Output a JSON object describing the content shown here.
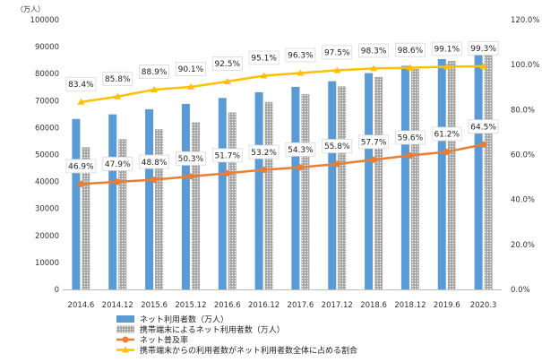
{
  "chart_data": {
    "type": "bar",
    "categories": [
      "2014.6",
      "2014.12",
      "2015.6",
      "2015.12",
      "2016.6",
      "2016.12",
      "2017.6",
      "2017.12",
      "2018.6",
      "2018.12",
      "2019.6",
      "2020.3"
    ],
    "y_unit_label": "（万人）",
    "ylim": [
      0,
      100000
    ],
    "y_ticks": [
      "0",
      "10000",
      "20000",
      "30000",
      "40000",
      "50000",
      "60000",
      "70000",
      "80000",
      "90000",
      "100000"
    ],
    "y2lim": [
      0,
      120
    ],
    "y2_ticks": [
      "0.0%",
      "20.0%",
      "40.0%",
      "60.0%",
      "80.0%",
      "100.0%",
      "120.0%"
    ],
    "series": [
      {
        "name": "ネット利用者数（万人）",
        "kind": "bar",
        "axis": "left",
        "color": "#5b9bd5",
        "values": [
          63200,
          64900,
          66800,
          68800,
          71000,
          73100,
          75100,
          77200,
          80200,
          82900,
          85400,
          90400
        ]
      },
      {
        "name": "携帯端末によるネット利用者数（万人）",
        "kind": "bar",
        "axis": "left",
        "color": "#a5a5a5",
        "values": [
          52700,
          55700,
          59400,
          62000,
          65600,
          69500,
          72400,
          75300,
          78800,
          81700,
          84700,
          89700
        ]
      },
      {
        "name": "ネット普及率",
        "kind": "line",
        "axis": "right",
        "color": "#ed7d31",
        "values": [
          46.9,
          47.9,
          48.8,
          50.3,
          51.7,
          53.2,
          54.3,
          55.8,
          57.7,
          59.6,
          61.2,
          64.5
        ],
        "labels": [
          "46.9%",
          "47.9%",
          "48.8%",
          "50.3%",
          "51.7%",
          "53.2%",
          "54.3%",
          "55.8%",
          "57.7%",
          "59.6%",
          "61.2%",
          "64.5%"
        ]
      },
      {
        "name": "携帯端末からの利用者数がネット利用者数全体に占める割合",
        "kind": "line",
        "axis": "right",
        "color": "#ffc000",
        "values": [
          83.4,
          85.8,
          88.9,
          90.1,
          92.5,
          95.1,
          96.3,
          97.5,
          98.3,
          98.6,
          99.1,
          99.3
        ],
        "labels": [
          "83.4%",
          "85.8%",
          "88.9%",
          "90.1%",
          "92.5%",
          "95.1%",
          "96.3%",
          "97.5%",
          "98.3%",
          "98.6%",
          "99.1%",
          "99.3%"
        ]
      }
    ],
    "grid": false,
    "legend_position": "bottom"
  }
}
